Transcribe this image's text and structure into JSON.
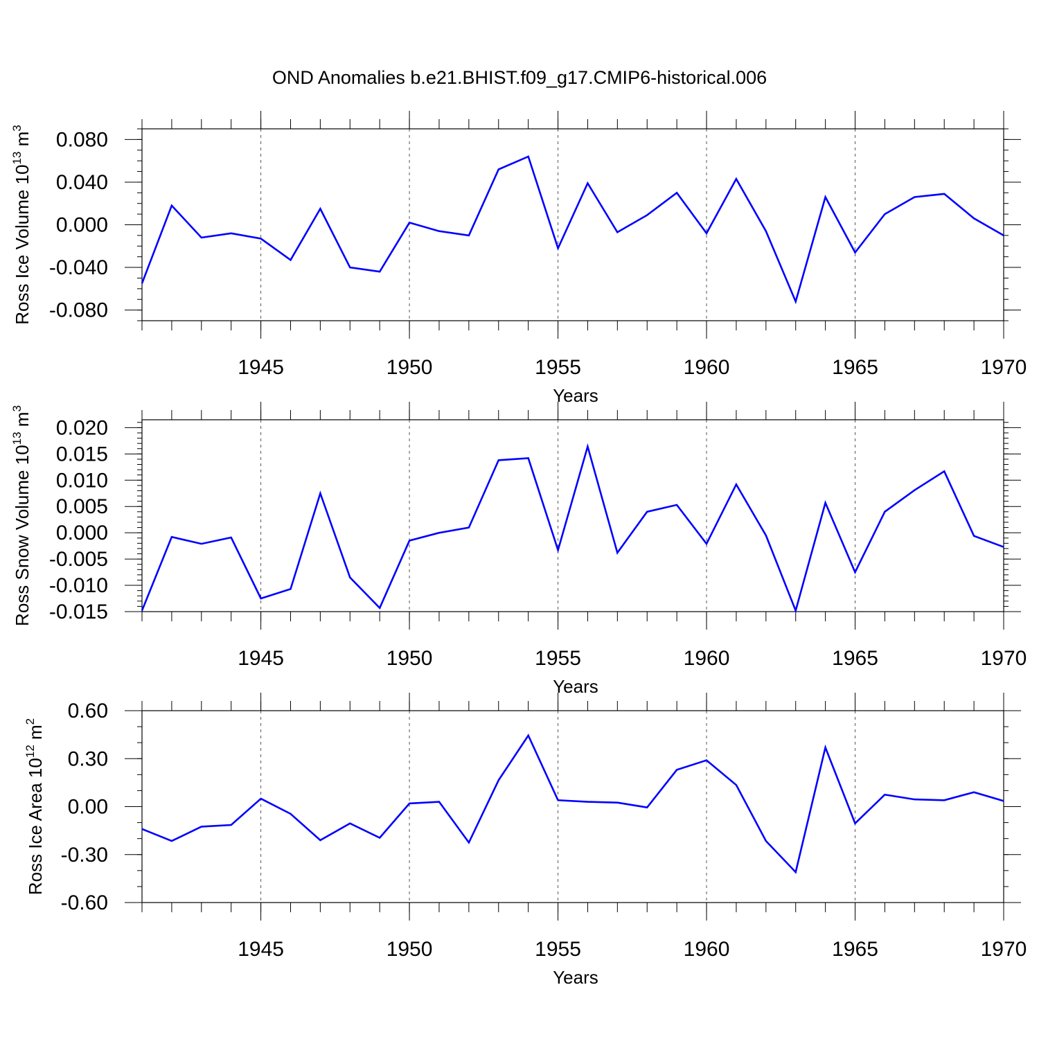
{
  "figure": {
    "title": "OND Anomalies b.e21.BHIST.f09_g17.CMIP6-historical.006"
  },
  "colors": {
    "series": "#0000ff",
    "axis": "#000000",
    "grid": "#555555",
    "background": "#ffffff"
  },
  "chart_data": [
    {
      "type": "line",
      "title": "",
      "xlabel": "Years",
      "ylabel": "Ross Ice Volume 10",
      "ylabel_exp": "13",
      "ylabel_unit": "m",
      "ylabel_unit_exp": "3",
      "xlim": [
        1941,
        1970
      ],
      "ylim": [
        -0.09,
        0.09
      ],
      "yticks": [
        -0.08,
        -0.04,
        0.0,
        0.04,
        0.08
      ],
      "ytick_labels": [
        "-0.080",
        "-0.040",
        "0.000",
        "0.040",
        "0.080"
      ],
      "yminor_step": 0.01,
      "xticks": [
        1945,
        1950,
        1955,
        1960,
        1965,
        1970
      ],
      "xtick_labels": [
        "1945",
        "1950",
        "1955",
        "1960",
        "1965",
        "1970"
      ],
      "grid": "vertical dashed at major x ticks",
      "series": [
        {
          "x": [
            1941,
            1942,
            1943,
            1944,
            1945,
            1946,
            1947,
            1948,
            1949,
            1950,
            1951,
            1952,
            1953,
            1954,
            1955,
            1956,
            1957,
            1958,
            1959,
            1960,
            1961,
            1962,
            1963,
            1964,
            1965,
            1966,
            1967,
            1968,
            1969,
            1970
          ],
          "values": [
            -0.055,
            0.018,
            -0.012,
            -0.008,
            -0.013,
            -0.033,
            0.015,
            -0.04,
            -0.044,
            0.002,
            -0.006,
            -0.01,
            0.052,
            0.064,
            -0.022,
            0.039,
            -0.007,
            0.009,
            0.03,
            -0.008,
            0.043,
            -0.006,
            -0.072,
            0.026,
            -0.026,
            0.01,
            0.026,
            0.029,
            0.006,
            -0.01
          ]
        }
      ]
    },
    {
      "type": "line",
      "title": "",
      "xlabel": "Years",
      "ylabel": "Ross Snow Volume 10",
      "ylabel_exp": "13",
      "ylabel_unit": "m",
      "ylabel_unit_exp": "3",
      "xlim": [
        1941,
        1970
      ],
      "ylim": [
        -0.015,
        0.0215
      ],
      "yticks": [
        -0.015,
        -0.01,
        -0.005,
        0.0,
        0.005,
        0.01,
        0.015,
        0.02
      ],
      "ytick_labels": [
        "-0.015",
        "-0.010",
        "-0.005",
        "0.000",
        "0.005",
        "0.010",
        "0.015",
        "0.020"
      ],
      "yminor_step": 0.001,
      "xticks": [
        1945,
        1950,
        1955,
        1960,
        1965,
        1970
      ],
      "xtick_labels": [
        "1945",
        "1950",
        "1955",
        "1960",
        "1965",
        "1970"
      ],
      "grid": "vertical dashed at major x ticks",
      "series": [
        {
          "x": [
            1941,
            1942,
            1943,
            1944,
            1945,
            1946,
            1947,
            1948,
            1949,
            1950,
            1951,
            1952,
            1953,
            1954,
            1955,
            1956,
            1957,
            1958,
            1959,
            1960,
            1961,
            1962,
            1963,
            1964,
            1965,
            1966,
            1967,
            1968,
            1969,
            1970
          ],
          "values": [
            -0.0148,
            -0.0008,
            -0.0021,
            -0.0009,
            -0.0125,
            -0.0107,
            0.0075,
            -0.0085,
            -0.0143,
            -0.0015,
            0.0,
            0.001,
            0.0138,
            0.0142,
            -0.0033,
            0.0164,
            -0.0038,
            0.004,
            0.0053,
            -0.0021,
            0.0092,
            -0.0005,
            -0.0148,
            0.0057,
            -0.0075,
            0.004,
            0.0081,
            0.0117,
            -0.0006,
            -0.0027
          ]
        }
      ]
    },
    {
      "type": "line",
      "title": "",
      "xlabel": "Years",
      "ylabel": "Ross Ice Area 10",
      "ylabel_exp": "12",
      "ylabel_unit": "m",
      "ylabel_unit_exp": "2",
      "xlim": [
        1941,
        1970
      ],
      "ylim": [
        -0.6,
        0.6
      ],
      "yticks": [
        -0.6,
        -0.3,
        0.0,
        0.3,
        0.6
      ],
      "ytick_labels": [
        "-0.60",
        "-0.30",
        "0.00",
        "0.30",
        "0.60"
      ],
      "yminor_step": 0.1,
      "xticks": [
        1945,
        1950,
        1955,
        1960,
        1965,
        1970
      ],
      "xtick_labels": [
        "1945",
        "1950",
        "1955",
        "1960",
        "1965",
        "1970"
      ],
      "grid": "vertical dashed at major x ticks",
      "series": [
        {
          "x": [
            1941,
            1942,
            1943,
            1944,
            1945,
            1946,
            1947,
            1948,
            1949,
            1950,
            1951,
            1952,
            1953,
            1954,
            1955,
            1956,
            1957,
            1958,
            1959,
            1960,
            1961,
            1962,
            1963,
            1964,
            1965,
            1966,
            1967,
            1968,
            1969,
            1970
          ],
          "values": [
            -0.14,
            -0.215,
            -0.125,
            -0.115,
            0.05,
            -0.045,
            -0.21,
            -0.105,
            -0.195,
            0.02,
            0.03,
            -0.225,
            0.165,
            0.445,
            0.04,
            0.03,
            0.025,
            -0.005,
            0.23,
            0.29,
            0.135,
            -0.215,
            -0.41,
            0.37,
            -0.105,
            0.075,
            0.045,
            0.04,
            0.09,
            0.035
          ]
        }
      ]
    }
  ]
}
